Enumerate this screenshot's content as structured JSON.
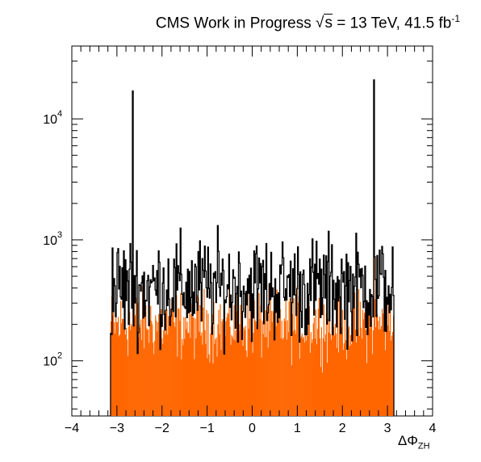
{
  "chart_data": {
    "type": "bar",
    "title": {
      "prefix": "CMS Work in Progress",
      "sqrt_symbol": "√",
      "sqrt_arg": "s",
      "energy": " = 13 TeV, 41.5 fb",
      "lumi_exponent": "-1"
    },
    "xlabel": {
      "symbol": "ΔΦ",
      "subscript": "ZH"
    },
    "ylabel": "",
    "xlim": [
      -4,
      4
    ],
    "ylim": [
      35,
      40000
    ],
    "yscale": "log",
    "x_ticks": [
      -4,
      -3,
      -2,
      -1,
      0,
      1,
      2,
      3,
      4
    ],
    "x_tick_labels": [
      "−4",
      "−3",
      "−2",
      "−1",
      "0",
      "1",
      "2",
      "3",
      "4"
    ],
    "y_ticks": [
      100,
      1000,
      10000
    ],
    "y_tick_labels": [
      {
        "base": "10",
        "exp": "2"
      },
      {
        "base": "10",
        "exp": "3"
      },
      {
        "base": "10",
        "exp": "4"
      }
    ],
    "grid": false,
    "legend": "none",
    "series": [
      {
        "style": "filled",
        "color": "#ff6600",
        "bins": 350,
        "range": [
          -3.1416,
          3.1416
        ],
        "base_level": 200,
        "peaks": [
          {
            "x": -2.65,
            "value": 17000
          },
          {
            "x": 2.69,
            "value": 21000
          }
        ]
      },
      {
        "style": "line",
        "color": "#000000",
        "bins": 350,
        "range": [
          -3.1416,
          3.1416
        ],
        "base_level": 400,
        "peaks": [
          {
            "x": -2.65,
            "value": 17000
          },
          {
            "x": 2.69,
            "value": 21000
          }
        ]
      }
    ],
    "fill_color": "#ff6600",
    "line_color": "#000000"
  }
}
